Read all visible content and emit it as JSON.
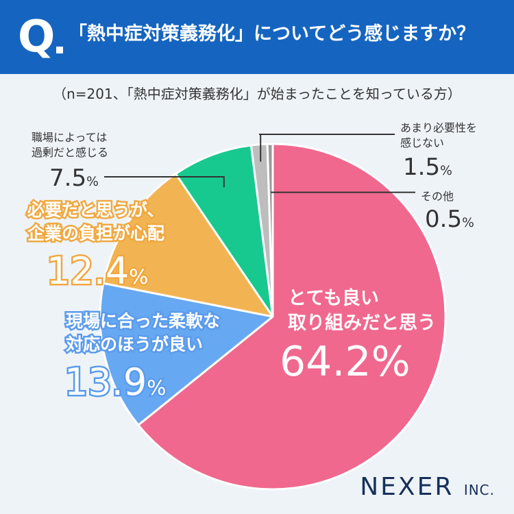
{
  "header": {
    "q_mark": "Q",
    "title": "「熱中症対策義務化」についてどう感じますか？"
  },
  "subtitle": "（n=201、「熱中症対策義務化」が始まったことを知っている方）",
  "logo": {
    "name": "NEXER",
    "suffix": "INC."
  },
  "chart_data": {
    "type": "pie",
    "unit": "%",
    "slices": [
      {
        "label_lines": [
          "とても良い",
          "取り組みだと思う"
        ],
        "value": 64.2,
        "value_text": "64.2",
        "color": "#f0688e"
      },
      {
        "label_lines": [
          "現場に合った柔軟な",
          "対応のほうが良い"
        ],
        "value": 13.9,
        "value_text": "13.9",
        "color": "#66a8f2"
      },
      {
        "label_lines": [
          "必要だと思うが、",
          "企業の負担が心配"
        ],
        "value": 12.4,
        "value_text": "12.4",
        "color": "#f2b452"
      },
      {
        "label_lines": [
          "職場によっては",
          "過剰だと感じる"
        ],
        "value": 7.5,
        "value_text": "7.5",
        "color": "#17c98f"
      },
      {
        "label_lines": [
          "あまり必要性を",
          "感じない"
        ],
        "value": 1.5,
        "value_text": "1.5",
        "color": "#bdbdbd"
      },
      {
        "label_lines": [
          "その他"
        ],
        "value": 0.5,
        "value_text": "0.5",
        "color": "#9a9a9a"
      }
    ]
  }
}
